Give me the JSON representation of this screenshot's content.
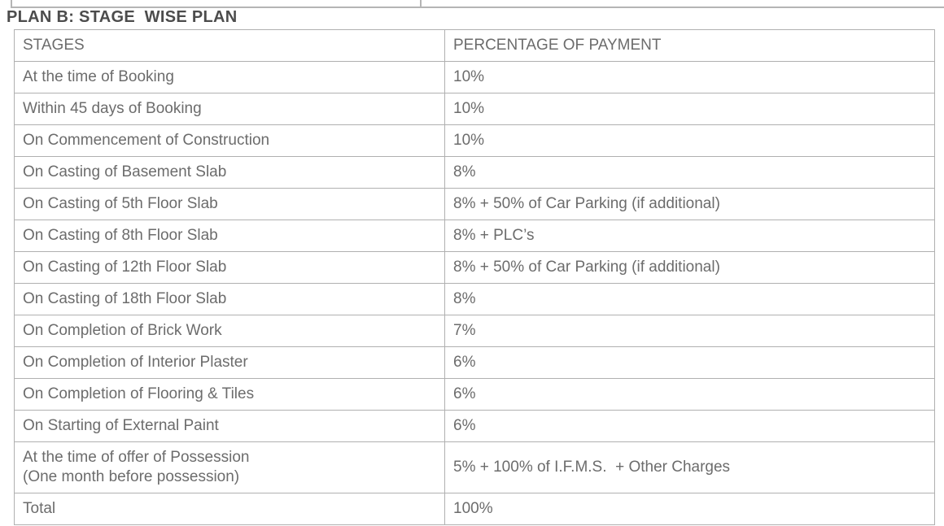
{
  "title": "PLAN B: STAGE  WISE PLAN",
  "table": {
    "headers": [
      "STAGES",
      "PERCENTAGE OF PAYMENT"
    ],
    "rows": [
      {
        "stage": "At the time of Booking",
        "payment": "10%"
      },
      {
        "stage": "Within 45 days of Booking",
        "payment": "10%"
      },
      {
        "stage": "On Commencement of Construction",
        "payment": "10%"
      },
      {
        "stage": "On Casting of Basement Slab",
        "payment": "8%"
      },
      {
        "stage": "On Casting of 5th Floor Slab",
        "payment": "8% + 50% of Car Parking (if additional)"
      },
      {
        "stage": "On Casting of 8th Floor Slab",
        "payment": "8% + PLC’s"
      },
      {
        "stage": "On Casting of 12th Floor Slab",
        "payment": "8% + 50% of Car Parking (if additional)"
      },
      {
        "stage": "On Casting of 18th Floor Slab",
        "payment": "8%"
      },
      {
        "stage": "On Completion of Brick Work",
        "payment": "7%"
      },
      {
        "stage": "On Completion of Interior Plaster",
        "payment": "6%"
      },
      {
        "stage": "On Completion of Flooring & Tiles",
        "payment": "6%"
      },
      {
        "stage": "On Starting of External Paint",
        "payment": "6%"
      },
      {
        "stage": "At the time of offer of Possession\n(One month before possession)",
        "payment": "5% + 100% of I.F.M.S.  + Other Charges"
      },
      {
        "stage": "Total",
        "payment": "100%"
      }
    ]
  },
  "colors": {
    "text": "#6c6c6c",
    "title_text": "#4c4c4c",
    "border": "#b0b0b0",
    "background": "#ffffff"
  }
}
